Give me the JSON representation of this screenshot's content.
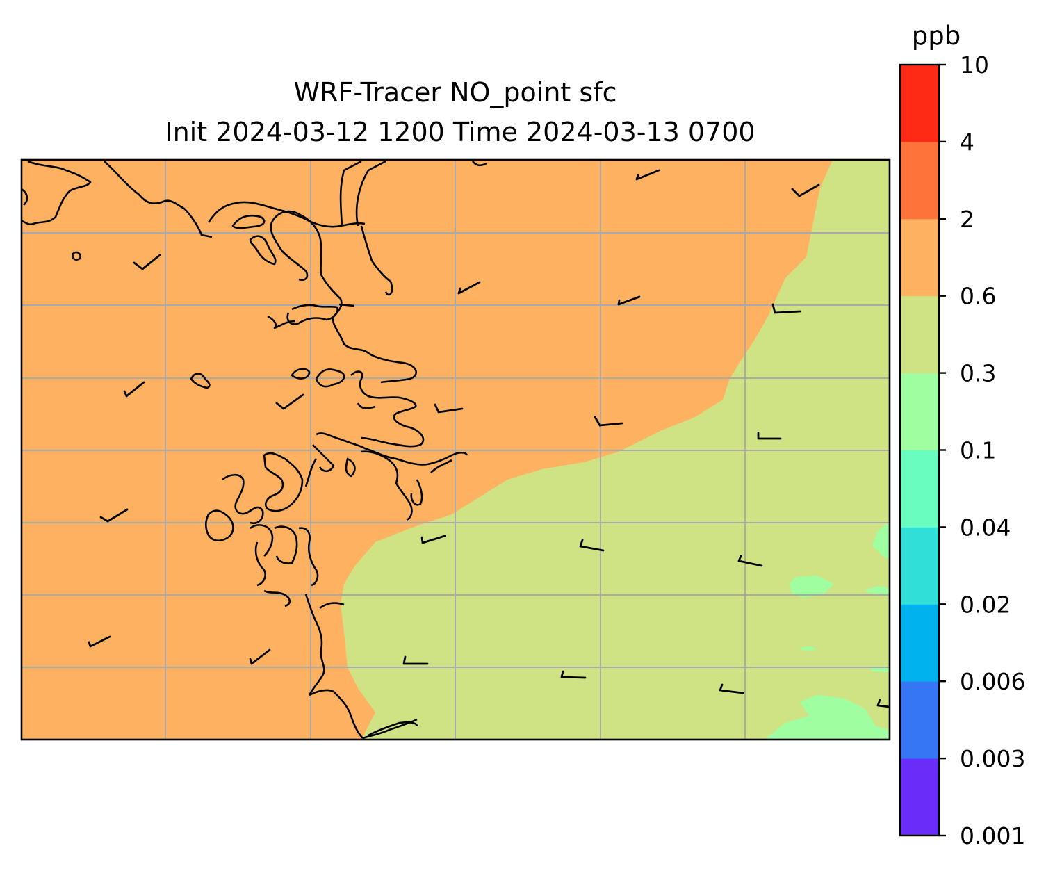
{
  "figure": {
    "title_line1": "WRF-Tracer NO_point sfc",
    "title_line2": "Init 2024-03-12 1200 Time 2024-03-13 0700"
  },
  "colorbar": {
    "unit": "ppb",
    "ticks": [
      "0.001",
      "0.003",
      "0.006",
      "0.02",
      "0.04",
      "0.1",
      "0.3",
      "0.6",
      "2",
      "4",
      "10"
    ],
    "colors": [
      "#6a2cf8",
      "#3675f4",
      "#00b2ed",
      "#30e0d8",
      "#69fdc0",
      "#9efea0",
      "#cfe384",
      "#feb160",
      "#fe733a",
      "#fe2a16"
    ]
  },
  "map": {
    "fill_high": "#feb160",
    "fill_mid": "#cfe384",
    "fill_low": "#9efea0",
    "gridline_color": "#aaaaaa",
    "coastline_color": "#000000"
  }
}
